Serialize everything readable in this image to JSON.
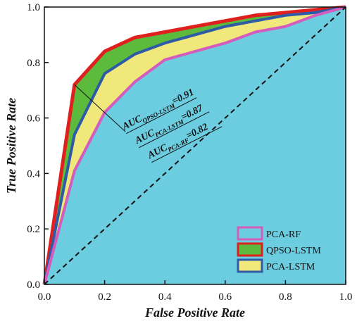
{
  "chart_data": {
    "type": "area",
    "xlabel": "False Positive Rate",
    "ylabel": "True Positive Rate",
    "xlim": [
      0,
      1
    ],
    "ylim": [
      0,
      1
    ],
    "x_ticks": [
      "0.0",
      "0.2",
      "0.4",
      "0.6",
      "0.8",
      "1.0"
    ],
    "y_ticks": [
      "0.0",
      "0.2",
      "0.4",
      "0.6",
      "0.8",
      "1.0"
    ],
    "grid": false,
    "legend_position": "bottom-right",
    "series": [
      {
        "name": "QPSO-LSTM",
        "auc_label": "AUC",
        "auc_sub": "QPSO-LSTM",
        "auc_value": "=0.91",
        "fill": "#5cba3c",
        "stroke": "#e0201e",
        "x": [
          0,
          0.1,
          0.2,
          0.3,
          0.4,
          0.5,
          0.6,
          0.7,
          0.8,
          0.9,
          1.0
        ],
        "y": [
          0,
          0.72,
          0.84,
          0.89,
          0.91,
          0.93,
          0.95,
          0.97,
          0.98,
          0.99,
          1.0
        ]
      },
      {
        "name": "PCA-LSTM",
        "auc_label": "AUC",
        "auc_sub": "PCA-LSTM",
        "auc_value": "=0.87",
        "fill": "#f0e87a",
        "stroke": "#2e5aa8",
        "x": [
          0,
          0.1,
          0.2,
          0.3,
          0.4,
          0.5,
          0.6,
          0.7,
          0.8,
          0.9,
          1.0
        ],
        "y": [
          0,
          0.54,
          0.76,
          0.83,
          0.87,
          0.9,
          0.93,
          0.95,
          0.97,
          0.98,
          1.0
        ]
      },
      {
        "name": "PCA-RF",
        "auc_label": "AUC",
        "auc_sub": "PCA-RF",
        "auc_value": "=0.82",
        "fill": "#6ccde0",
        "stroke": "#d45cbc",
        "x": [
          0,
          0.1,
          0.2,
          0.3,
          0.4,
          0.5,
          0.6,
          0.7,
          0.8,
          0.9,
          1.0
        ],
        "y": [
          0,
          0.41,
          0.62,
          0.73,
          0.81,
          0.84,
          0.87,
          0.91,
          0.93,
          0.97,
          1.0
        ]
      }
    ],
    "legend_order": [
      "PCA-RF",
      "QPSO-LSTM",
      "PCA-LSTM"
    ],
    "reference_line": {
      "x": [
        0,
        1
      ],
      "y": [
        0,
        1
      ],
      "style": "dashed"
    }
  }
}
